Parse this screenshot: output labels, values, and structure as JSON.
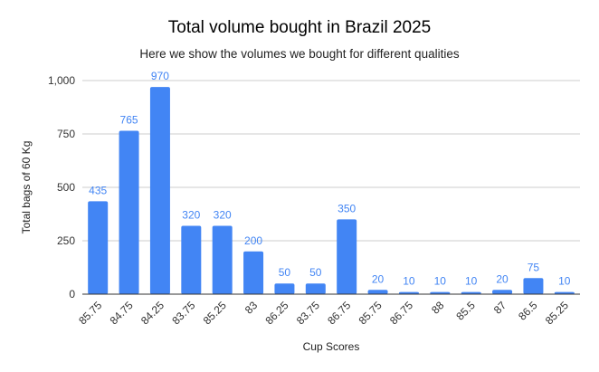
{
  "chart_data": {
    "type": "bar",
    "title": "Total volume bought in Brazil 2025",
    "subtitle": "Here we show the volumes we bought for different qualities",
    "xlabel": "Cup Scores",
    "ylabel": "Total bags of 60 Kg",
    "categories": [
      "85.75",
      "84.75",
      "84.25",
      "83.75",
      "85.25",
      "83",
      "86.25",
      "83.75",
      "86.75",
      "85.75",
      "86.75",
      "88",
      "85.5",
      "87",
      "86.5",
      "85.25"
    ],
    "values": [
      435,
      765,
      970,
      320,
      320,
      200,
      50,
      50,
      350,
      20,
      10,
      10,
      10,
      20,
      75,
      10
    ],
    "data_labels": [
      "435",
      "765",
      "970",
      "320",
      "320",
      "200",
      "50",
      "50",
      "350",
      "20",
      "10",
      "10",
      "10",
      "20",
      "75",
      "10"
    ],
    "ylim": [
      0,
      1000
    ],
    "yticks": [
      0,
      250,
      500,
      750,
      1000
    ],
    "ytick_labels": [
      "0",
      "250",
      "500",
      "750",
      "1,000"
    ],
    "grid": true,
    "legend": "none",
    "bar_color": "#4285f4",
    "label_color": "#4285f4",
    "inside_label_color": "#ffffff"
  }
}
